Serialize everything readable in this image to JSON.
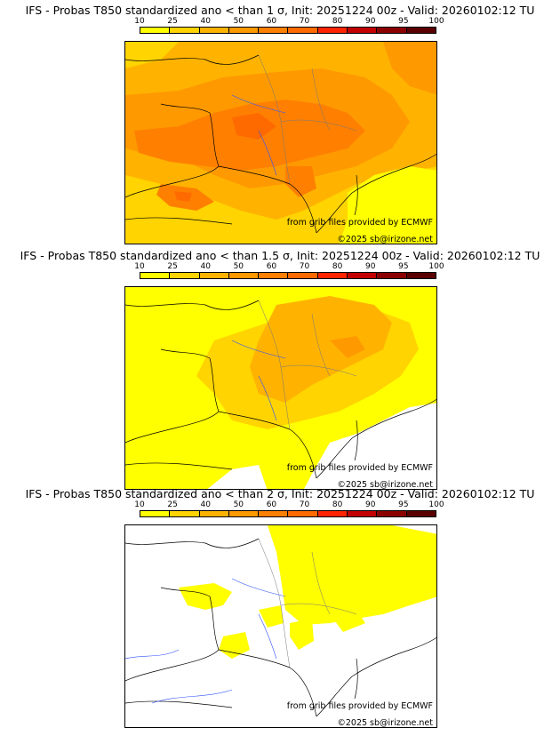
{
  "colorbar": {
    "ticks": [
      "10",
      "25",
      "40",
      "50",
      "60",
      "70",
      "80",
      "90",
      "95",
      "100"
    ],
    "colors": [
      "#ffff00",
      "#ffd400",
      "#ffb300",
      "#ff9900",
      "#ff8000",
      "#ff6a00",
      "#ff2400",
      "#c30000",
      "#8b0000",
      "#5a0000"
    ]
  },
  "credits": {
    "source": "from grib files provided by ECMWF",
    "copyright": "©2025 sb@irizone.net"
  },
  "panels": [
    {
      "title": "IFS - Probas T850  standardized ano < than 1 σ, Init: 20251224 00z - Valid: 20260102:12 TU",
      "scenario": "prob-exceed-1-sigma"
    },
    {
      "title": "IFS - Probas T850  standardized ano < than 1.5 σ, Init: 20251224 00z - Valid: 20260102:12 TU",
      "scenario": "prob-exceed-1.5-sigma"
    },
    {
      "title": "IFS - Probas T850  standardized ano < than 2 σ, Init: 20251224 00z - Valid: 20260102:12 TU",
      "scenario": "prob-exceed-2-sigma"
    }
  ]
}
